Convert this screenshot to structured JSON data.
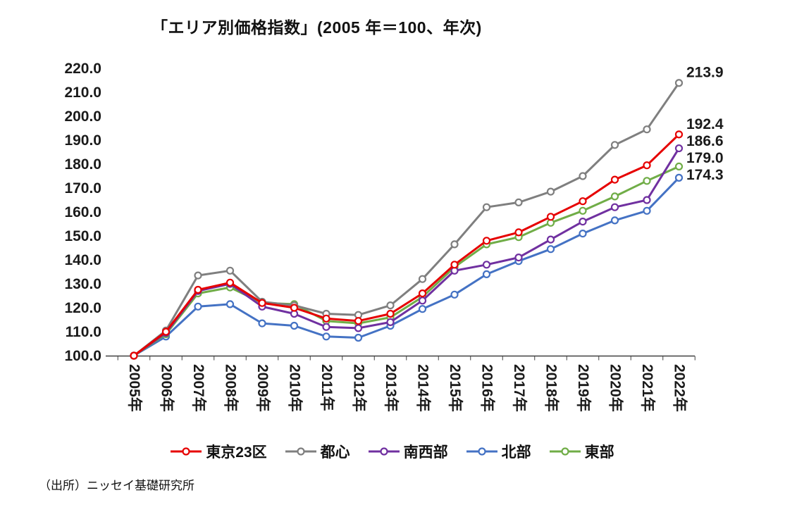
{
  "title": "「エリア別価格指数」(2005 年＝100、年次)",
  "source": "（出所）ニッセイ基礎研究所",
  "chart_data": {
    "type": "line",
    "title": "「エリア別価格指数」(2005 年＝100、年次)",
    "categories": [
      "2005年",
      "2006年",
      "2007年",
      "2008年",
      "2009年",
      "2010年",
      "2011年",
      "2012年",
      "2013年",
      "2014年",
      "2015年",
      "2016年",
      "2017年",
      "2018年",
      "2019年",
      "2020年",
      "2021年",
      "2022年"
    ],
    "series": [
      {
        "name": "東京23区",
        "color": "#e60000",
        "end_label": "192.4",
        "values": [
          100,
          110,
          127.5,
          130.5,
          122,
          120,
          115.5,
          114.5,
          117.5,
          126,
          138,
          148,
          151.5,
          158,
          164.5,
          173.5,
          179.5,
          192.4
        ]
      },
      {
        "name": "都心",
        "color": "#7f7f7f",
        "end_label": "213.9",
        "values": [
          100,
          110.5,
          133.5,
          135.5,
          122.5,
          121,
          117.5,
          117,
          121,
          132,
          146.5,
          162,
          164,
          168.5,
          175,
          188,
          194.5,
          213.9
        ]
      },
      {
        "name": "南西部",
        "color": "#7030a0",
        "end_label": "186.6",
        "values": [
          100,
          109.5,
          127,
          130,
          120.5,
          117.5,
          112,
          111.5,
          114,
          123,
          135.5,
          138,
          141,
          148.5,
          156,
          162,
          165,
          186.6
        ]
      },
      {
        "name": "北部",
        "color": "#4472c4",
        "end_label": "174.3",
        "values": [
          100,
          108,
          120.5,
          121.5,
          113.5,
          112.5,
          108,
          107.5,
          112.5,
          119.5,
          125.5,
          134,
          139.5,
          144.5,
          151,
          156.5,
          160.5,
          174.3
        ]
      },
      {
        "name": "東部",
        "color": "#70ad47",
        "end_label": "179.0",
        "values": [
          100,
          109,
          126,
          128.5,
          122,
          121.5,
          114.5,
          113.5,
          116,
          124.5,
          137,
          146.5,
          149.5,
          155.5,
          160.5,
          166.5,
          173,
          179
        ]
      }
    ],
    "ylim": [
      100,
      220
    ],
    "ytick_step": 10,
    "y_tick_labels": [
      "100.0",
      "110.0",
      "120.0",
      "130.0",
      "140.0",
      "150.0",
      "160.0",
      "170.0",
      "180.0",
      "190.0",
      "200.0",
      "210.0",
      "220.0"
    ],
    "xlabel": "",
    "ylabel": "",
    "grid": false,
    "legend_position": "bottom",
    "marker": "open-circle"
  }
}
